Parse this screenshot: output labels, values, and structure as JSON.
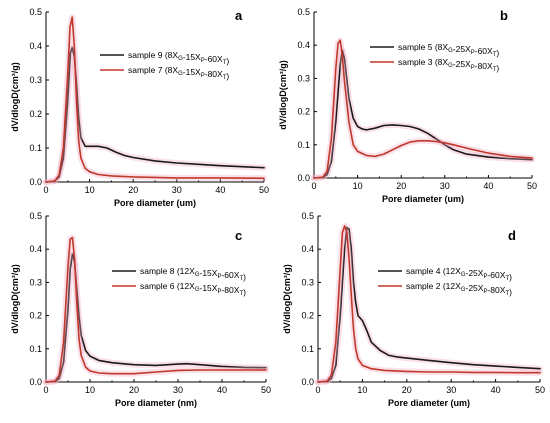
{
  "chart_data": [
    {
      "type": "line",
      "panel": "a",
      "xlabel": "Pore diameter (um)",
      "ylabel": "dV/dlogD(cm³/g)",
      "xlim": [
        0,
        50
      ],
      "ylim": [
        0,
        0.5
      ],
      "xticks": [
        0,
        10,
        20,
        30,
        40,
        50
      ],
      "yticks": [
        0.0,
        0.1,
        0.2,
        0.3,
        0.4,
        0.5
      ],
      "legend_position": "top-right",
      "series": [
        {
          "name": "sample 9 (8X_G-15X_P-60X_T)",
          "color": "#1a1a1a",
          "x": [
            0,
            2,
            3,
            4,
            5,
            5.6,
            6,
            6.5,
            7,
            7.5,
            8,
            9,
            10,
            12,
            14,
            16,
            18,
            20,
            25,
            30,
            35,
            40,
            45,
            50
          ],
          "y": [
            0.0,
            0.003,
            0.015,
            0.07,
            0.24,
            0.38,
            0.395,
            0.37,
            0.29,
            0.19,
            0.13,
            0.105,
            0.105,
            0.105,
            0.1,
            0.088,
            0.078,
            0.072,
            0.062,
            0.056,
            0.052,
            0.048,
            0.045,
            0.042
          ]
        },
        {
          "name": "sample 7 (8X_G-15X_P-80X_T)",
          "color": "#c0392b",
          "x": [
            0,
            2,
            3,
            4,
            5,
            5.5,
            6,
            6.5,
            7,
            7.5,
            8,
            9,
            10,
            12,
            15,
            20,
            30,
            40,
            50
          ],
          "y": [
            0.0,
            0.003,
            0.02,
            0.1,
            0.32,
            0.455,
            0.485,
            0.4,
            0.24,
            0.12,
            0.07,
            0.04,
            0.03,
            0.022,
            0.018,
            0.015,
            0.012,
            0.012,
            0.011
          ]
        }
      ]
    },
    {
      "type": "line",
      "panel": "b",
      "xlabel": "Pore diameter (um)",
      "ylabel": "dV/dlogD(cm³/g)",
      "xlim": [
        0,
        50
      ],
      "ylim": [
        0,
        0.5
      ],
      "xticks": [
        0,
        10,
        20,
        30,
        40,
        50
      ],
      "yticks": [
        0.0,
        0.1,
        0.2,
        0.3,
        0.4,
        0.5
      ],
      "legend_position": "top-right",
      "series": [
        {
          "name": "sample 5 (8X_G-25X_P-60X_T)",
          "color": "#1a1a1a",
          "x": [
            0,
            2,
            3,
            4,
            5,
            6,
            6.5,
            7,
            7.5,
            8,
            9,
            10,
            11,
            12,
            14,
            16,
            18,
            20,
            22,
            24,
            26,
            28,
            30,
            32,
            35,
            40,
            45,
            50
          ],
          "y": [
            0.0,
            0.002,
            0.01,
            0.05,
            0.17,
            0.34,
            0.385,
            0.36,
            0.3,
            0.24,
            0.18,
            0.155,
            0.148,
            0.145,
            0.15,
            0.158,
            0.16,
            0.158,
            0.155,
            0.148,
            0.135,
            0.118,
            0.1,
            0.085,
            0.072,
            0.063,
            0.058,
            0.055
          ]
        },
        {
          "name": "sample 3 (8X_G-25X_P-80X_T)",
          "color": "#c0392b",
          "x": [
            0,
            2,
            3,
            4,
            5,
            5.5,
            6,
            6.5,
            7,
            8,
            9,
            10,
            12,
            14,
            16,
            18,
            20,
            22,
            24,
            26,
            28,
            30,
            32,
            35,
            40,
            45,
            50
          ],
          "y": [
            0.0,
            0.002,
            0.02,
            0.12,
            0.33,
            0.405,
            0.415,
            0.37,
            0.29,
            0.17,
            0.1,
            0.08,
            0.068,
            0.065,
            0.072,
            0.085,
            0.098,
            0.108,
            0.112,
            0.112,
            0.11,
            0.106,
            0.1,
            0.09,
            0.075,
            0.065,
            0.06
          ]
        }
      ]
    },
    {
      "type": "line",
      "panel": "c",
      "xlabel": "Pore diameter (nm)",
      "ylabel": "dV/dlogD(cm³/g)",
      "xlim": [
        0,
        50
      ],
      "ylim": [
        0,
        0.5
      ],
      "xticks": [
        0,
        10,
        20,
        30,
        40,
        50
      ],
      "yticks": [
        0.0,
        0.1,
        0.2,
        0.3,
        0.4,
        0.5
      ],
      "legend_position": "top-right",
      "series": [
        {
          "name": "sample 8 (12X_G-15X_P-60X_T)",
          "color": "#1a1a1a",
          "x": [
            0,
            2,
            3,
            4,
            5,
            5.5,
            6,
            6.5,
            7,
            7.5,
            8,
            9,
            10,
            12,
            15,
            20,
            25,
            30,
            32,
            35,
            40,
            45,
            50
          ],
          "y": [
            0.0,
            0.002,
            0.01,
            0.06,
            0.22,
            0.34,
            0.385,
            0.36,
            0.28,
            0.2,
            0.14,
            0.095,
            0.078,
            0.065,
            0.058,
            0.052,
            0.05,
            0.054,
            0.055,
            0.052,
            0.047,
            0.044,
            0.043
          ]
        },
        {
          "name": "sample 6 (12X_G-15X_P-80X_T)",
          "color": "#c0392b",
          "x": [
            0,
            2,
            3,
            4,
            5,
            5.5,
            6,
            6.5,
            7,
            7.5,
            8,
            9,
            10,
            12,
            15,
            20,
            25,
            30,
            35,
            40,
            45,
            50
          ],
          "y": [
            0.0,
            0.002,
            0.02,
            0.12,
            0.35,
            0.43,
            0.435,
            0.37,
            0.24,
            0.13,
            0.08,
            0.045,
            0.033,
            0.027,
            0.025,
            0.025,
            0.03,
            0.035,
            0.036,
            0.036,
            0.036,
            0.036
          ]
        }
      ]
    },
    {
      "type": "line",
      "panel": "d",
      "xlabel": "Pore diameter (um)",
      "ylabel": "dV/dlogD(cm³/g)",
      "xlim": [
        0,
        50
      ],
      "ylim": [
        0,
        0.5
      ],
      "xticks": [
        0,
        10,
        20,
        30,
        40,
        50
      ],
      "yticks": [
        0.0,
        0.1,
        0.2,
        0.3,
        0.4,
        0.5
      ],
      "legend_position": "top-right",
      "series": [
        {
          "name": "sample 4 (12X_G-25X_P-60X_T)",
          "color": "#1a1a1a",
          "x": [
            0,
            2,
            3,
            4,
            5,
            6,
            6.5,
            7,
            7.5,
            8,
            8.5,
            9,
            10,
            11,
            12,
            14,
            16,
            18,
            20,
            25,
            30,
            35,
            40,
            45,
            50
          ],
          "y": [
            0.0,
            0.002,
            0.01,
            0.05,
            0.2,
            0.4,
            0.465,
            0.46,
            0.4,
            0.3,
            0.24,
            0.2,
            0.185,
            0.155,
            0.12,
            0.095,
            0.08,
            0.075,
            0.072,
            0.065,
            0.058,
            0.052,
            0.048,
            0.044,
            0.04
          ]
        },
        {
          "name": "sample 2 (12X_G-25X_P-80X_T)",
          "color": "#c0392b",
          "x": [
            0,
            2,
            3,
            4,
            5,
            5.5,
            6,
            6.5,
            7,
            7.5,
            8,
            8.5,
            9,
            10,
            12,
            15,
            20,
            25,
            30,
            35,
            40,
            45,
            50
          ],
          "y": [
            0.0,
            0.002,
            0.02,
            0.12,
            0.34,
            0.45,
            0.47,
            0.45,
            0.37,
            0.26,
            0.16,
            0.1,
            0.07,
            0.05,
            0.04,
            0.035,
            0.032,
            0.03,
            0.03,
            0.029,
            0.029,
            0.028,
            0.028
          ]
        }
      ]
    }
  ]
}
